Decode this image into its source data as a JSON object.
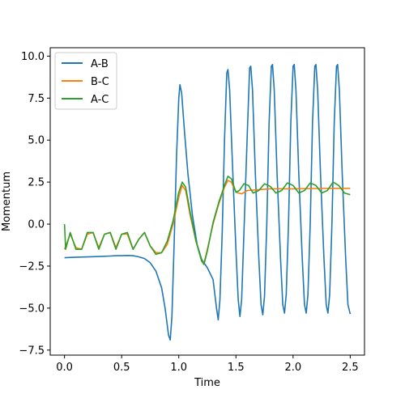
{
  "chart_data": {
    "type": "line",
    "title": "",
    "xlabel": "Time",
    "ylabel": "Momentum",
    "xlim": [
      -0.125,
      2.625
    ],
    "ylim": [
      -7.8,
      10.5
    ],
    "xticks": [
      0.0,
      0.5,
      1.0,
      1.5,
      2.0,
      2.5
    ],
    "xtick_labels": [
      "0.0",
      "0.5",
      "1.0",
      "1.5",
      "2.0",
      "2.5"
    ],
    "yticks": [
      -7.5,
      -5.0,
      -2.5,
      0.0,
      2.5,
      5.0,
      7.5,
      10.0
    ],
    "ytick_labels": [
      "−7.5",
      "−5.0",
      "−2.5",
      "0.0",
      "2.5",
      "5.0",
      "7.5",
      "10.0"
    ],
    "grid": false,
    "legend_position": "top-left",
    "series": [
      {
        "name": "A-B",
        "color": "#1f77b4",
        "points": [
          [
            0.0,
            -2.0
          ],
          [
            0.1,
            -1.97
          ],
          [
            0.2,
            -1.95
          ],
          [
            0.3,
            -1.93
          ],
          [
            0.4,
            -1.9
          ],
          [
            0.45,
            -1.88
          ],
          [
            0.5,
            -1.88
          ],
          [
            0.55,
            -1.87
          ],
          [
            0.6,
            -1.88
          ],
          [
            0.65,
            -1.95
          ],
          [
            0.7,
            -2.05
          ],
          [
            0.75,
            -2.3
          ],
          [
            0.8,
            -2.8
          ],
          [
            0.85,
            -3.8
          ],
          [
            0.88,
            -5.0
          ],
          [
            0.91,
            -6.6
          ],
          [
            0.925,
            -6.9
          ],
          [
            0.94,
            -5.5
          ],
          [
            0.96,
            -1.0
          ],
          [
            0.98,
            4.0
          ],
          [
            1.0,
            7.5
          ],
          [
            1.01,
            8.3
          ],
          [
            1.025,
            7.8
          ],
          [
            1.05,
            5.5
          ],
          [
            1.08,
            3.0
          ],
          [
            1.12,
            0.5
          ],
          [
            1.16,
            -1.2
          ],
          [
            1.2,
            -2.1
          ],
          [
            1.25,
            -2.6
          ],
          [
            1.3,
            -3.3
          ],
          [
            1.33,
            -5.0
          ],
          [
            1.345,
            -5.7
          ],
          [
            1.36,
            -4.5
          ],
          [
            1.38,
            -0.5
          ],
          [
            1.4,
            5.0
          ],
          [
            1.42,
            9.0
          ],
          [
            1.43,
            9.2
          ],
          [
            1.445,
            8.0
          ],
          [
            1.47,
            3.5
          ],
          [
            1.5,
            -1.5
          ],
          [
            1.52,
            -4.5
          ],
          [
            1.535,
            -5.5
          ],
          [
            1.55,
            -4.5
          ],
          [
            1.57,
            -0.5
          ],
          [
            1.6,
            5.5
          ],
          [
            1.62,
            9.3
          ],
          [
            1.63,
            9.4
          ],
          [
            1.645,
            8.0
          ],
          [
            1.67,
            3.0
          ],
          [
            1.7,
            -2.0
          ],
          [
            1.72,
            -4.8
          ],
          [
            1.735,
            -5.4
          ],
          [
            1.75,
            -4.3
          ],
          [
            1.77,
            0.0
          ],
          [
            1.79,
            6.0
          ],
          [
            1.81,
            9.4
          ],
          [
            1.82,
            9.5
          ],
          [
            1.835,
            8.0
          ],
          [
            1.86,
            3.0
          ],
          [
            1.89,
            -2.0
          ],
          [
            1.91,
            -4.8
          ],
          [
            1.925,
            -5.3
          ],
          [
            1.94,
            -4.2
          ],
          [
            1.96,
            0.0
          ],
          [
            1.98,
            6.0
          ],
          [
            2.0,
            9.4
          ],
          [
            2.01,
            9.5
          ],
          [
            2.025,
            8.0
          ],
          [
            2.05,
            3.0
          ],
          [
            2.08,
            -2.0
          ],
          [
            2.1,
            -4.8
          ],
          [
            2.115,
            -5.3
          ],
          [
            2.13,
            -4.2
          ],
          [
            2.15,
            0.0
          ],
          [
            2.17,
            6.0
          ],
          [
            2.19,
            9.4
          ],
          [
            2.2,
            9.5
          ],
          [
            2.215,
            8.0
          ],
          [
            2.24,
            3.0
          ],
          [
            2.27,
            -2.0
          ],
          [
            2.29,
            -4.8
          ],
          [
            2.305,
            -5.3
          ],
          [
            2.32,
            -4.2
          ],
          [
            2.34,
            0.0
          ],
          [
            2.36,
            6.0
          ],
          [
            2.38,
            9.4
          ],
          [
            2.39,
            9.5
          ],
          [
            2.405,
            8.0
          ],
          [
            2.43,
            3.0
          ],
          [
            2.46,
            -2.0
          ],
          [
            2.48,
            -4.8
          ],
          [
            2.5,
            -5.35
          ]
        ]
      },
      {
        "name": "B-C",
        "color": "#ff7f0e",
        "points": [
          [
            0.0,
            -1.5
          ],
          [
            0.05,
            -0.6
          ],
          [
            0.1,
            -1.4
          ],
          [
            0.15,
            -1.5
          ],
          [
            0.2,
            -0.6
          ],
          [
            0.25,
            -0.5
          ],
          [
            0.3,
            -1.4
          ],
          [
            0.35,
            -0.6
          ],
          [
            0.4,
            -0.5
          ],
          [
            0.45,
            -1.4
          ],
          [
            0.5,
            -0.6
          ],
          [
            0.55,
            -0.6
          ],
          [
            0.6,
            -1.5
          ],
          [
            0.65,
            -0.9
          ],
          [
            0.7,
            -0.5
          ],
          [
            0.75,
            -1.3
          ],
          [
            0.8,
            -1.7
          ],
          [
            0.85,
            -1.7
          ],
          [
            0.9,
            -1.2
          ],
          [
            0.95,
            0.0
          ],
          [
            1.0,
            1.6
          ],
          [
            1.03,
            2.3
          ],
          [
            1.06,
            2.0
          ],
          [
            1.1,
            0.5
          ],
          [
            1.15,
            -1.0
          ],
          [
            1.2,
            -2.2
          ],
          [
            1.22,
            -2.35
          ],
          [
            1.25,
            -1.5
          ],
          [
            1.3,
            0.0
          ],
          [
            1.35,
            1.2
          ],
          [
            1.4,
            2.2
          ],
          [
            1.43,
            2.6
          ],
          [
            1.46,
            2.5
          ],
          [
            1.5,
            1.9
          ],
          [
            1.55,
            1.8
          ],
          [
            1.6,
            2.0
          ],
          [
            1.7,
            2.05
          ],
          [
            1.8,
            2.1
          ],
          [
            2.0,
            2.1
          ],
          [
            2.2,
            2.12
          ],
          [
            2.4,
            2.13
          ],
          [
            2.5,
            2.13
          ]
        ]
      },
      {
        "name": "A-C",
        "color": "#2ca02c",
        "points": [
          [
            0.0,
            0.0
          ],
          [
            0.01,
            -1.5
          ],
          [
            0.05,
            -0.5
          ],
          [
            0.1,
            -1.5
          ],
          [
            0.15,
            -1.5
          ],
          [
            0.2,
            -0.5
          ],
          [
            0.25,
            -0.5
          ],
          [
            0.3,
            -1.5
          ],
          [
            0.35,
            -0.6
          ],
          [
            0.4,
            -0.5
          ],
          [
            0.45,
            -1.5
          ],
          [
            0.5,
            -0.6
          ],
          [
            0.55,
            -0.5
          ],
          [
            0.6,
            -1.5
          ],
          [
            0.65,
            -0.9
          ],
          [
            0.7,
            -0.5
          ],
          [
            0.75,
            -1.3
          ],
          [
            0.8,
            -1.8
          ],
          [
            0.85,
            -1.7
          ],
          [
            0.9,
            -1.0
          ],
          [
            0.95,
            0.2
          ],
          [
            1.0,
            1.9
          ],
          [
            1.03,
            2.5
          ],
          [
            1.06,
            2.2
          ],
          [
            1.1,
            0.7
          ],
          [
            1.15,
            -1.0
          ],
          [
            1.2,
            -2.2
          ],
          [
            1.22,
            -2.4
          ],
          [
            1.25,
            -1.6
          ],
          [
            1.3,
            0.1
          ],
          [
            1.35,
            1.3
          ],
          [
            1.4,
            2.3
          ],
          [
            1.43,
            2.85
          ],
          [
            1.46,
            2.7
          ],
          [
            1.5,
            1.9
          ],
          [
            1.53,
            2.0
          ],
          [
            1.57,
            2.4
          ],
          [
            1.61,
            2.3
          ],
          [
            1.65,
            1.85
          ],
          [
            1.7,
            2.0
          ],
          [
            1.75,
            2.4
          ],
          [
            1.8,
            2.25
          ],
          [
            1.85,
            1.85
          ],
          [
            1.9,
            2.0
          ],
          [
            1.95,
            2.45
          ],
          [
            2.0,
            2.3
          ],
          [
            2.05,
            1.85
          ],
          [
            2.1,
            2.0
          ],
          [
            2.15,
            2.45
          ],
          [
            2.2,
            2.3
          ],
          [
            2.25,
            1.85
          ],
          [
            2.3,
            2.0
          ],
          [
            2.35,
            2.5
          ],
          [
            2.4,
            2.3
          ],
          [
            2.45,
            1.85
          ],
          [
            2.5,
            1.75
          ]
        ]
      }
    ]
  }
}
